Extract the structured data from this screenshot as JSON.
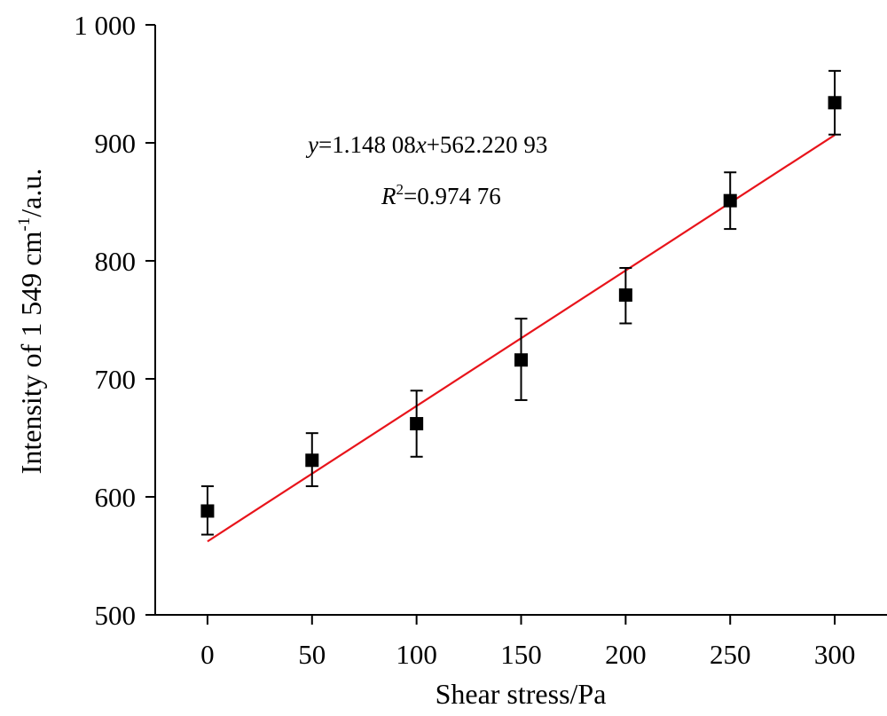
{
  "chart_data": {
    "type": "scatter",
    "xlabel": "Shear stress/Pa",
    "ylabel": {
      "prefix": "Intensity of 1 549 cm",
      "superscript": "-1",
      "suffix": "/a.u."
    },
    "xlim": [
      -25,
      325
    ],
    "ylim": [
      500,
      1000
    ],
    "x_ticks": [
      0,
      50,
      100,
      150,
      200,
      250,
      300
    ],
    "x_tick_labels": [
      "0",
      "50",
      "100",
      "150",
      "200",
      "250",
      "300"
    ],
    "y_ticks": [
      500,
      600,
      700,
      800,
      900,
      1000
    ],
    "y_tick_labels": [
      "500",
      "600",
      "700",
      "800",
      "900",
      "1 000"
    ],
    "series": [
      {
        "marker": "square",
        "color": "#000000",
        "points": [
          {
            "x": 0,
            "y": 588,
            "err_low": 568,
            "err_high": 609
          },
          {
            "x": 50,
            "y": 631,
            "err_low": 609,
            "err_high": 654
          },
          {
            "x": 100,
            "y": 662,
            "err_low": 634,
            "err_high": 690
          },
          {
            "x": 150,
            "y": 716,
            "err_low": 682,
            "err_high": 751
          },
          {
            "x": 200,
            "y": 771,
            "err_low": 747,
            "err_high": 794
          },
          {
            "x": 250,
            "y": 851,
            "err_low": 827,
            "err_high": 875
          },
          {
            "x": 300,
            "y": 934,
            "err_low": 907,
            "err_high": 961
          }
        ]
      }
    ],
    "fit": {
      "color": "#e8141b",
      "slope": 1.14808,
      "intercept": 562.22093,
      "x_range": [
        0,
        300
      ]
    },
    "annotations": {
      "equation": {
        "var_y": "y",
        "eq_a": "=1.148 08",
        "var_x": "x",
        "eq_b": "+562.220 93"
      },
      "r2": {
        "var": "R",
        "sup": "2",
        "value": "=0.974 76"
      }
    }
  }
}
